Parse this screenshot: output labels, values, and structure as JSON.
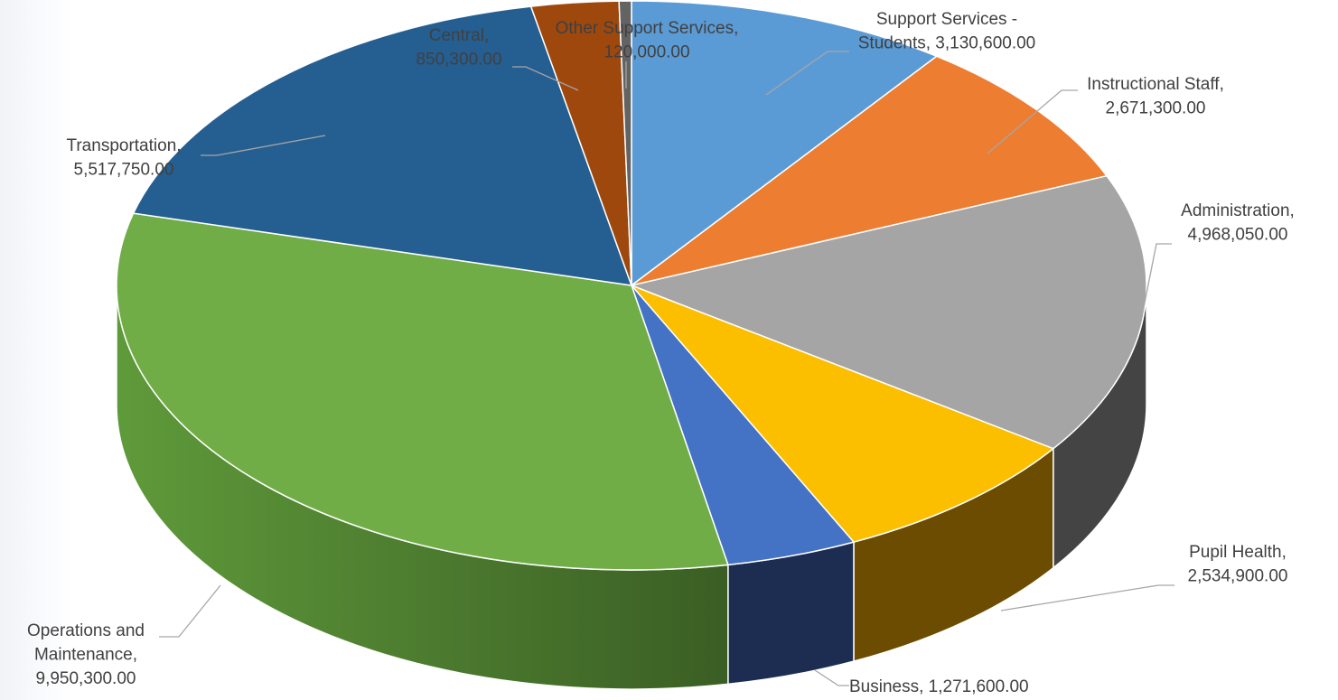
{
  "chart_data": {
    "type": "pie",
    "style": "3d-pie",
    "start_angle_deg": 0,
    "direction": "clockwise",
    "slices": [
      {
        "name": "Support Services - Students",
        "value": 3130600.0,
        "label_lines": [
          "Support Services -",
          "Students,  3,130,600.00"
        ],
        "color": "#5b9bd5",
        "side_color": "#2e5d8c"
      },
      {
        "name": "Instructional Staff",
        "value": 2671300.0,
        "label_lines": [
          "Instructional Staff,",
          "2,671,300.00"
        ],
        "color": "#ed7d31",
        "side_color": "#9a4f1c"
      },
      {
        "name": "Administration",
        "value": 4968050.0,
        "label_lines": [
          "Administration,",
          "4,968,050.00"
        ],
        "color": "#a5a5a5",
        "side_color": "#444444"
      },
      {
        "name": "Pupil Health",
        "value": 2534900.0,
        "label_lines": [
          "Pupil Health,",
          "2,534,900.00"
        ],
        "color": "#fbbf00",
        "side_color": "#6b4c00"
      },
      {
        "name": "Business",
        "value": 1271600.0,
        "label_lines": [
          "Business,  1,271,600.00"
        ],
        "color": "#4472c4",
        "side_color": "#1d2d52"
      },
      {
        "name": "Operations and Maintenance",
        "value": 9950300.0,
        "label_lines": [
          "Operations and",
          "Maintenance,",
          "9,950,300.00"
        ],
        "color": "#70ad47",
        "side_color": "#4a7a2e"
      },
      {
        "name": "Transportation",
        "value": 5517750.0,
        "label_lines": [
          "Transportation,",
          "5,517,750.00"
        ],
        "color": "#255e91",
        "side_color": "#163a5c"
      },
      {
        "name": "Central",
        "value": 850300.0,
        "label_lines": [
          "Central,",
          "850,300.00"
        ],
        "color": "#9e480e",
        "side_color": "#5e2a08"
      },
      {
        "name": "Other Support Services",
        "value": 120000.0,
        "label_lines": [
          "Other Support Services,",
          "120,000.00"
        ],
        "color": "#636363",
        "side_color": "#333333"
      }
    ]
  }
}
